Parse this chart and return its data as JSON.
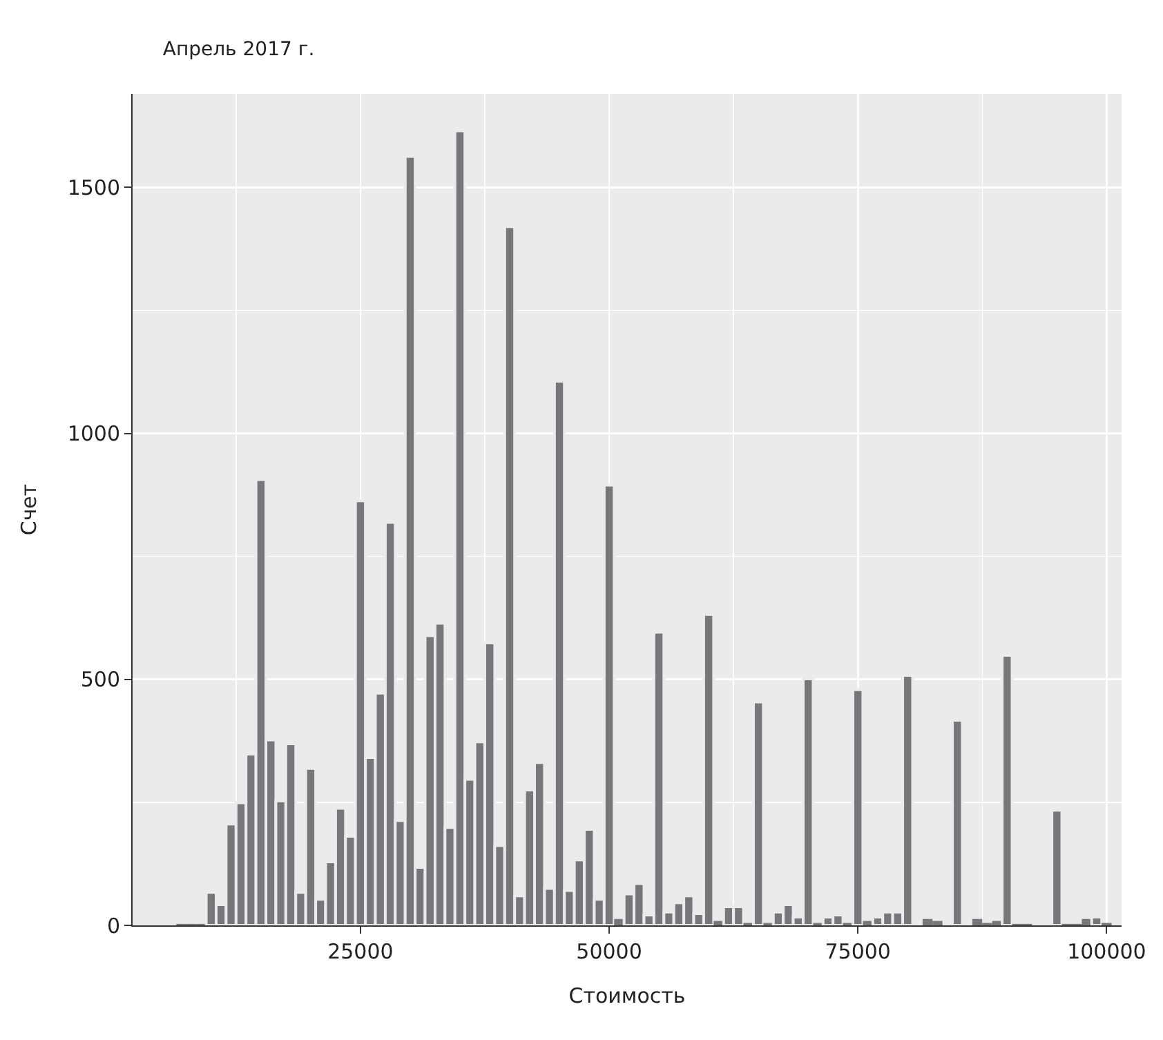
{
  "chart_data": {
    "type": "histogram",
    "title": "Апрель 2017 г.",
    "xlabel": "Стоимость",
    "ylabel": "Счет",
    "bins": [
      6500,
      7500,
      8500,
      9500,
      10500,
      11500,
      12500,
      13500,
      14500,
      15500,
      16500,
      17500,
      18500,
      19500,
      20500,
      21500,
      22500,
      23500,
      24500,
      25500,
      26500,
      27500,
      28500,
      29500,
      30500,
      31500,
      32500,
      33500,
      34500,
      35500,
      36500,
      37500,
      38500,
      39500,
      40500,
      41500,
      42500,
      43500,
      44500,
      45500,
      46500,
      47500,
      48500,
      49500,
      50500,
      51500,
      52500,
      53500,
      54500,
      55500,
      56500,
      57500,
      58500,
      59500,
      60500,
      61500,
      62500,
      63500,
      64500,
      65500,
      66500,
      67500,
      68500,
      69500,
      70500,
      71500,
      72500,
      73500,
      74500,
      75500,
      76500,
      77500,
      78500,
      79500,
      80500,
      81500,
      82500,
      83500,
      84500,
      85500,
      86500,
      87500,
      88500,
      89500,
      90500,
      91500,
      92500,
      93500,
      94500,
      95500,
      96500,
      97500,
      98500,
      99500,
      100500
    ],
    "values": [
      3,
      3,
      3,
      67,
      42,
      206,
      249,
      348,
      906,
      377,
      253,
      369,
      67,
      319,
      53,
      129,
      238,
      181,
      863,
      341,
      472,
      819,
      213,
      1563,
      118,
      589,
      614,
      199,
      1615,
      297,
      373,
      574,
      162,
      1420,
      60,
      275,
      331,
      75,
      1106,
      71,
      133,
      195,
      53,
      895,
      13,
      64,
      85,
      21,
      596,
      27,
      46,
      60,
      24,
      632,
      9,
      38,
      38,
      5,
      454,
      5,
      27,
      42,
      17,
      501,
      5,
      17,
      21,
      5,
      479,
      9,
      17,
      27,
      27,
      508,
      0,
      13,
      9,
      0,
      417,
      0,
      13,
      5,
      9,
      549,
      3,
      3,
      0,
      0,
      234,
      3,
      3,
      13,
      17,
      5
    ],
    "color": "#77777b",
    "xlim": [
      2100,
      101500
    ],
    "xticks": [
      25000,
      50000,
      75000,
      100000
    ],
    "ylim": [
      0,
      1690
    ],
    "yticks": [
      0,
      500,
      1000,
      1500
    ],
    "grid": true
  }
}
